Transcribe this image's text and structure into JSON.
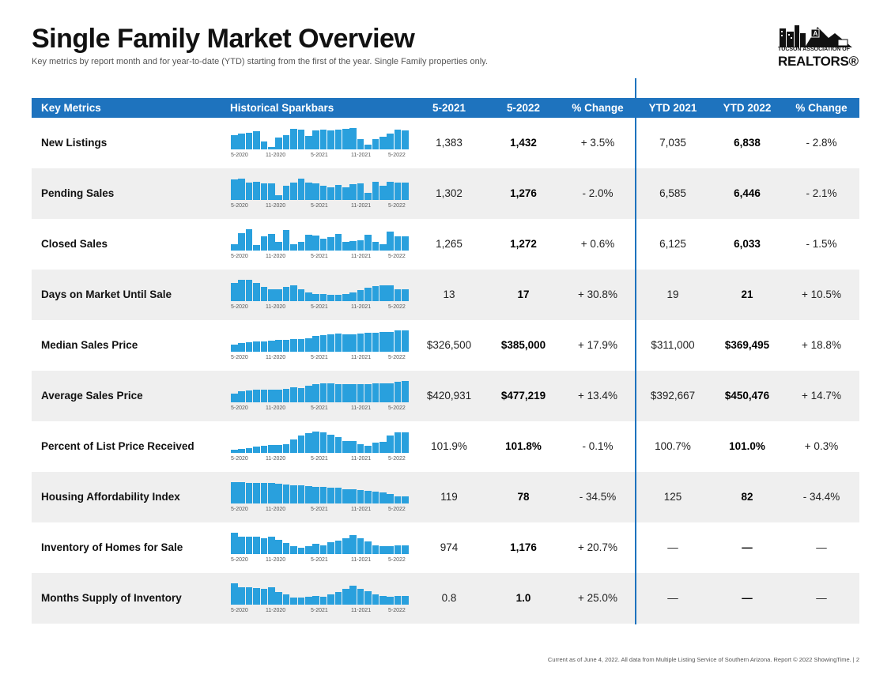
{
  "header": {
    "title": "Single Family Market Overview",
    "subtitle": "Key metrics by report month and for year-to-date (YTD) starting from the first of the year. Single Family properties only."
  },
  "logo": {
    "line1": "TUCSON ASSOCIATION OF",
    "line2": "REALTORS®"
  },
  "table": {
    "columns": [
      "Key Metrics",
      "Historical Sparkbars",
      "5-2021",
      "5-2022",
      "% Change",
      "YTD 2021",
      "YTD 2022",
      "% Change"
    ],
    "tick_labels": [
      "5-2020",
      "11-2020",
      "5-2021",
      "11-2021",
      "5-2022"
    ],
    "rows": [
      {
        "metric": "New Listings",
        "m2021": "1,383",
        "m2022": "1,432",
        "chg": "+ 3.5%",
        "ytd2021": "7,035",
        "ytd2022": "6,838",
        "ytdchg": "- 2.8%",
        "spark": [
          0.66,
          0.7,
          0.75,
          0.84,
          0.36,
          0.12,
          0.53,
          0.64,
          0.93,
          0.89,
          0.62,
          0.86,
          0.88,
          0.86,
          0.89,
          0.92,
          0.98,
          0.48,
          0.23,
          0.48,
          0.58,
          0.72,
          0.9,
          0.85
        ]
      },
      {
        "metric": "Pending Sales",
        "m2021": "1,302",
        "m2022": "1,276",
        "chg": "- 2.0%",
        "ytd2021": "6,585",
        "ytd2022": "6,446",
        "ytdchg": "- 2.1%",
        "spark": [
          0.92,
          0.96,
          0.77,
          0.81,
          0.76,
          0.76,
          0.23,
          0.65,
          0.8,
          0.95,
          0.78,
          0.76,
          0.65,
          0.57,
          0.68,
          0.56,
          0.73,
          0.75,
          0.34,
          0.84,
          0.66,
          0.82,
          0.78,
          0.78
        ]
      },
      {
        "metric": "Closed Sales",
        "m2021": "1,265",
        "m2022": "1,272",
        "chg": "+ 0.6%",
        "ytd2021": "6,125",
        "ytd2022": "6,033",
        "ytdchg": "- 1.5%",
        "spark": [
          0.3,
          0.77,
          0.96,
          0.26,
          0.64,
          0.76,
          0.38,
          0.94,
          0.27,
          0.38,
          0.71,
          0.68,
          0.53,
          0.6,
          0.75,
          0.38,
          0.43,
          0.45,
          0.72,
          0.39,
          0.28,
          0.85,
          0.63,
          0.66
        ]
      },
      {
        "metric": "Days on Market Until Sale",
        "m2021": "13",
        "m2022": "17",
        "chg": "+ 30.8%",
        "ytd2021": "19",
        "ytd2022": "21",
        "ytdchg": "+ 10.5%",
        "spark": [
          0.81,
          0.96,
          0.96,
          0.82,
          0.65,
          0.55,
          0.54,
          0.63,
          0.72,
          0.54,
          0.39,
          0.31,
          0.31,
          0.29,
          0.29,
          0.32,
          0.39,
          0.51,
          0.6,
          0.67,
          0.71,
          0.7,
          0.53,
          0.52
        ]
      },
      {
        "metric": "Median Sales Price",
        "m2021": "$326,500",
        "m2022": "$385,000",
        "chg": "+ 17.9%",
        "ytd2021": "$311,000",
        "ytd2022": "$369,495",
        "ytdchg": "+ 18.8%",
        "spark": [
          0.33,
          0.38,
          0.42,
          0.46,
          0.48,
          0.49,
          0.53,
          0.55,
          0.57,
          0.59,
          0.62,
          0.7,
          0.75,
          0.78,
          0.82,
          0.8,
          0.8,
          0.82,
          0.86,
          0.87,
          0.88,
          0.9,
          0.95,
          0.96
        ]
      },
      {
        "metric": "Average Sales Price",
        "m2021": "$420,931",
        "m2022": "$477,219",
        "chg": "+ 13.4%",
        "ytd2021": "$392,667",
        "ytd2022": "$450,476",
        "ytdchg": "+ 14.7%",
        "spark": [
          0.4,
          0.51,
          0.55,
          0.59,
          0.58,
          0.58,
          0.58,
          0.62,
          0.67,
          0.65,
          0.76,
          0.81,
          0.86,
          0.85,
          0.84,
          0.84,
          0.82,
          0.81,
          0.83,
          0.86,
          0.85,
          0.87,
          0.94,
          0.98
        ]
      },
      {
        "metric": "Percent of List Price Received",
        "m2021": "101.9%",
        "m2022": "101.8%",
        "chg": "- 0.1%",
        "ytd2021": "100.7%",
        "ytd2022": "101.0%",
        "ytdchg": "+ 0.3%",
        "spark": [
          0.13,
          0.19,
          0.21,
          0.3,
          0.31,
          0.36,
          0.36,
          0.39,
          0.61,
          0.79,
          0.89,
          0.95,
          0.93,
          0.83,
          0.71,
          0.54,
          0.52,
          0.4,
          0.32,
          0.45,
          0.5,
          0.77,
          0.92,
          0.92
        ]
      },
      {
        "metric": "Housing Affordability Index",
        "m2021": "119",
        "m2022": "78",
        "chg": "- 34.5%",
        "ytd2021": "125",
        "ytd2022": "82",
        "ytdchg": "- 34.4%",
        "spark": [
          0.97,
          0.96,
          0.93,
          0.93,
          0.93,
          0.92,
          0.89,
          0.85,
          0.82,
          0.82,
          0.77,
          0.75,
          0.75,
          0.72,
          0.71,
          0.66,
          0.65,
          0.62,
          0.56,
          0.52,
          0.49,
          0.43,
          0.34,
          0.32
        ]
      },
      {
        "metric": "Inventory of Homes for Sale",
        "m2021": "974",
        "m2022": "1,176",
        "chg": "+ 20.7%",
        "ytd2021": "—",
        "ytd2022": "—",
        "ytdchg": "—",
        "spark": [
          0.96,
          0.78,
          0.77,
          0.8,
          0.73,
          0.8,
          0.63,
          0.51,
          0.37,
          0.29,
          0.37,
          0.46,
          0.38,
          0.52,
          0.6,
          0.72,
          0.85,
          0.71,
          0.57,
          0.4,
          0.36,
          0.36,
          0.4,
          0.41
        ]
      },
      {
        "metric": "Months Supply of Inventory",
        "m2021": "0.8",
        "m2022": "1.0",
        "chg": "+ 25.0%",
        "ytd2021": "—",
        "ytd2022": "—",
        "ytdchg": "—",
        "spark": [
          0.97,
          0.8,
          0.78,
          0.76,
          0.7,
          0.77,
          0.58,
          0.45,
          0.32,
          0.31,
          0.35,
          0.4,
          0.36,
          0.47,
          0.57,
          0.72,
          0.85,
          0.71,
          0.61,
          0.45,
          0.38,
          0.36,
          0.38,
          0.38
        ]
      }
    ]
  },
  "footer": "Current as of June 4, 2022. All data from Multiple Listing Service of Southern Arizona. Report © 2022 ShowingTime.  |  2",
  "colors": {
    "header_bg": "#1e73be",
    "bar": "#29a0dd",
    "alt_row": "#efefef"
  }
}
